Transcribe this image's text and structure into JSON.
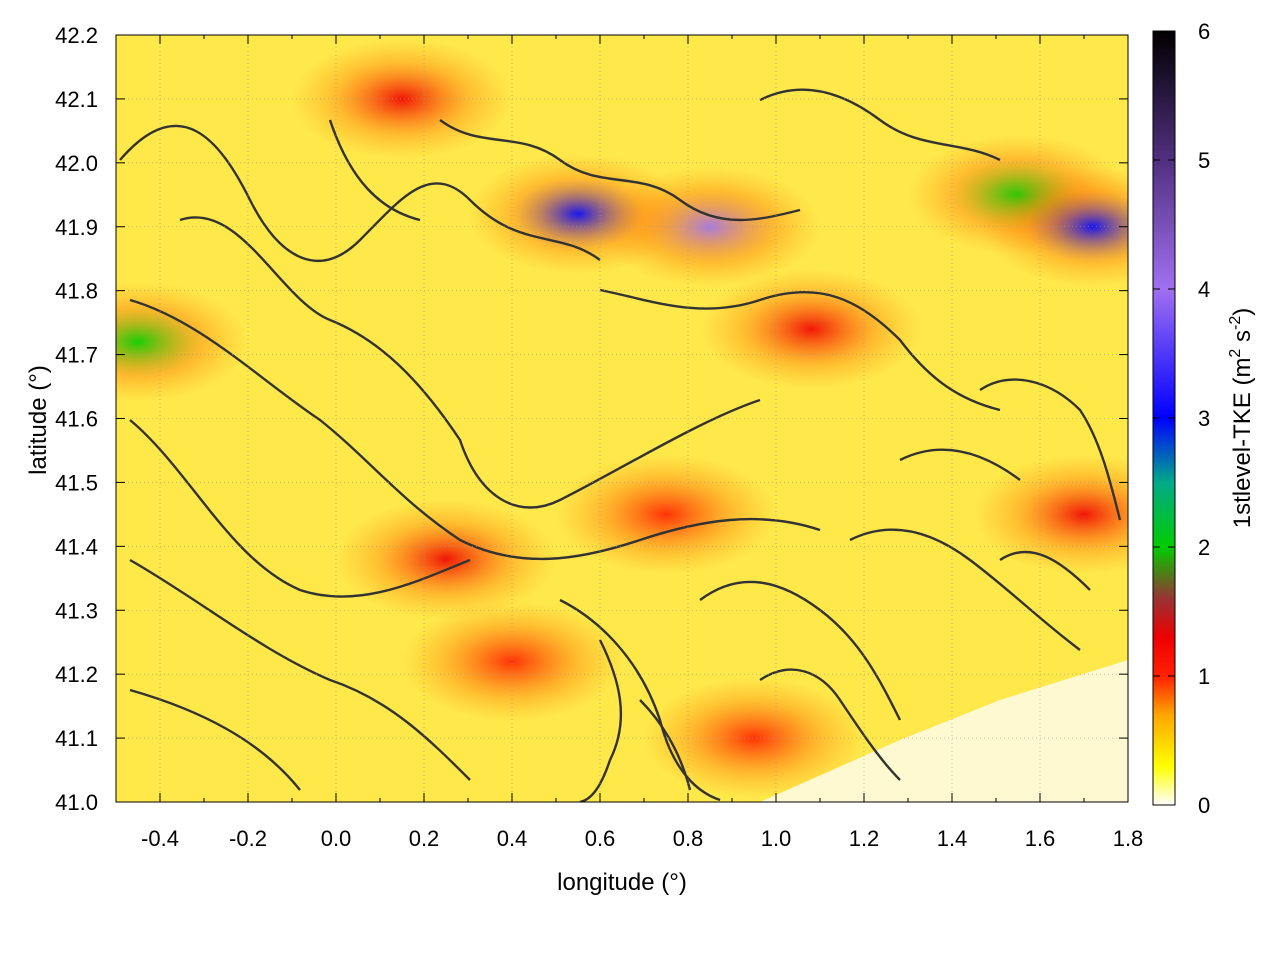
{
  "chart_data": {
    "type": "heatmap",
    "xlabel": "longitude (°)",
    "ylabel": "latitude (°)",
    "xlim": [
      -0.5,
      1.8
    ],
    "ylim": [
      41.0,
      42.2
    ],
    "x_ticks": [
      "-0.4",
      "-0.2",
      "0.0",
      "0.2",
      "0.4",
      "0.6",
      "0.8",
      "1.0",
      "1.2",
      "1.4",
      "1.6",
      "1.8"
    ],
    "y_ticks": [
      "41.0",
      "41.1",
      "41.2",
      "41.3",
      "41.4",
      "41.5",
      "41.6",
      "41.7",
      "41.8",
      "41.9",
      "42.0",
      "42.1",
      "42.2"
    ],
    "grid": true,
    "colorbar": {
      "label_main": "1stlevel-TKE (m",
      "label_sup1": "2",
      "label_mid": " s",
      "label_sup2": "-2",
      "label_end": ")",
      "range": [
        0,
        6
      ],
      "ticks": [
        "0",
        "1",
        "2",
        "3",
        "4",
        "5",
        "6"
      ],
      "stops": [
        {
          "v": 0.0,
          "c": "#ffffff"
        },
        {
          "v": 0.3,
          "c": "#ffff00"
        },
        {
          "v": 0.7,
          "c": "#ffa500"
        },
        {
          "v": 1.0,
          "c": "#ff2000"
        },
        {
          "v": 1.3,
          "c": "#ee0000"
        },
        {
          "v": 1.6,
          "c": "#993333"
        },
        {
          "v": 2.0,
          "c": "#00cc00"
        },
        {
          "v": 2.5,
          "c": "#00aa88"
        },
        {
          "v": 3.0,
          "c": "#0000ff"
        },
        {
          "v": 4.0,
          "c": "#a070f0"
        },
        {
          "v": 5.0,
          "c": "#503080"
        },
        {
          "v": 6.0,
          "c": "#000000"
        }
      ]
    },
    "hotspots": [
      {
        "lon": 1.08,
        "lat": 41.74,
        "v": 1.3
      },
      {
        "lon": 0.85,
        "lat": 41.9,
        "v": 3.5
      },
      {
        "lon": 0.55,
        "lat": 41.92,
        "v": 3.0
      },
      {
        "lon": 1.55,
        "lat": 41.95,
        "v": 2.0
      },
      {
        "lon": 1.72,
        "lat": 41.9,
        "v": 3.0
      },
      {
        "lon": 0.15,
        "lat": 42.1,
        "v": 1.1
      },
      {
        "lon": 0.25,
        "lat": 41.38,
        "v": 1.1
      },
      {
        "lon": 0.75,
        "lat": 41.45,
        "v": 1.0
      },
      {
        "lon": 1.7,
        "lat": 41.45,
        "v": 1.2
      },
      {
        "lon": -0.45,
        "lat": 41.72,
        "v": 2.0
      },
      {
        "lon": 0.4,
        "lat": 41.22,
        "v": 0.9
      },
      {
        "lon": 0.95,
        "lat": 41.1,
        "v": 0.9
      }
    ]
  }
}
